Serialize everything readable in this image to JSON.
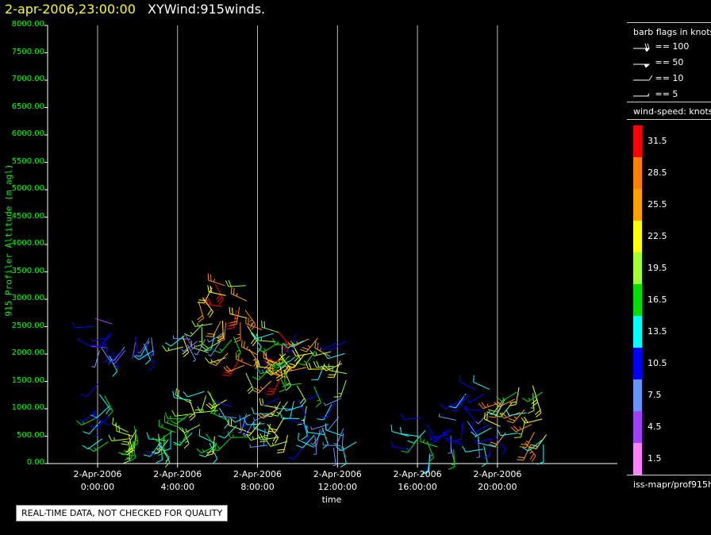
{
  "title": {
    "date": "2-apr-2006,23:00:00",
    "main": "XYWind:915winds."
  },
  "notice": "REAL-TIME DATA, NOT CHECKED FOR QUALITY",
  "legend": {
    "barb_title": "barb flags in knots",
    "barbs": [
      {
        "label": "== 100",
        "type": "flag100"
      },
      {
        "label": "== 50",
        "type": "flag50"
      },
      {
        "label": "== 10",
        "type": "full10"
      },
      {
        "label": "== 5",
        "type": "half5"
      }
    ],
    "colorbar_title": "wind-speed: knots",
    "colorbar": [
      {
        "label": "31.5",
        "color": "#ff0000"
      },
      {
        "label": "28.5",
        "color": "#ff8000"
      },
      {
        "label": "25.5",
        "color": "#ffa000"
      },
      {
        "label": "22.5",
        "color": "#ffff00"
      },
      {
        "label": "19.5",
        "color": "#a0ff30"
      },
      {
        "label": "16.5",
        "color": "#00e000"
      },
      {
        "label": "13.5",
        "color": "#00ffff"
      },
      {
        "label": "10.5",
        "color": "#0000ff"
      },
      {
        "label": "7.5",
        "color": "#6496ff"
      },
      {
        "label": "4.5",
        "color": "#a040ff"
      },
      {
        "label": "1.5",
        "color": "#ff80ff"
      }
    ],
    "source": "iss-mapr/prof915h"
  },
  "chart_data": {
    "type": "scatter",
    "subtype": "wind-barb time-height",
    "ylabel": "915 Profiler Altitude (m agl)",
    "xlabel": "time",
    "ylim": [
      0,
      8000
    ],
    "yticks": [
      "0.00",
      "500.00",
      "1000.00",
      "1500.00",
      "2000.00",
      "2500.00",
      "3000.00",
      "3500.00",
      "4000.00",
      "4500.00",
      "5000.00",
      "5500.00",
      "6000.00",
      "6500.00",
      "7000.00",
      "7500.00",
      "8000.00"
    ],
    "x_unit": "hours since 2-Apr-2006 00:00",
    "xlim": [
      -2.5,
      26
    ],
    "xticks": [
      {
        "hour": 0,
        "date": "2-Apr-2006",
        "time": "0:00:00"
      },
      {
        "hour": 4,
        "date": "2-Apr-2006",
        "time": "4:00:00"
      },
      {
        "hour": 8,
        "date": "2-Apr-2006",
        "time": "8:00:00"
      },
      {
        "hour": 12,
        "date": "2-Apr-2006",
        "time": "12:00:00"
      },
      {
        "hour": 16,
        "date": "2-Apr-2006",
        "time": "16:00:00"
      },
      {
        "hour": 20,
        "date": "2-Apr-2006",
        "time": "20:00:00"
      }
    ],
    "grid": "vertical lines at tick hours",
    "speed_colors": {
      "bins": [
        0,
        3,
        6,
        9,
        12,
        15,
        18,
        21,
        24,
        27,
        30
      ],
      "colors": [
        "#ff80ff",
        "#a040ff",
        "#6496ff",
        "#0000ff",
        "#00ffff",
        "#00e000",
        "#a0ff30",
        "#ffff00",
        "#ffa000",
        "#ff8000",
        "#ff0000"
      ]
    },
    "clusters": [
      {
        "x": [
          -0.6,
          1.0
        ],
        "y": [
          1950,
          2550
        ],
        "spd": [
          3,
          14
        ]
      },
      {
        "x": [
          -0.2,
          0.6
        ],
        "y": [
          100,
          1600
        ],
        "spd": [
          8,
          19
        ]
      },
      {
        "x": [
          1.0,
          3.0
        ],
        "y": [
          2050,
          2500
        ],
        "spd": [
          4,
          14
        ]
      },
      {
        "x": [
          1.5,
          2.0
        ],
        "y": [
          300,
          700
        ],
        "spd": [
          15,
          22
        ]
      },
      {
        "x": [
          3.0,
          4.0
        ],
        "y": [
          300,
          650
        ],
        "spd": [
          10,
          20
        ]
      },
      {
        "x": [
          3.8,
          6.5
        ],
        "y": [
          1900,
          2600
        ],
        "spd": [
          4,
          22
        ]
      },
      {
        "x": [
          4.0,
          6.5
        ],
        "y": [
          300,
          1400
        ],
        "spd": [
          12,
          24
        ]
      },
      {
        "x": [
          5.0,
          7.5
        ],
        "y": [
          2500,
          3300
        ],
        "spd": [
          20,
          32
        ]
      },
      {
        "x": [
          6.5,
          10.0
        ],
        "y": [
          1500,
          2500
        ],
        "spd": [
          10,
          32
        ]
      },
      {
        "x": [
          6.5,
          10.5
        ],
        "y": [
          300,
          1100
        ],
        "spd": [
          6,
          24
        ]
      },
      {
        "x": [
          9.0,
          12.5
        ],
        "y": [
          1000,
          2300
        ],
        "spd": [
          6,
          26
        ]
      },
      {
        "x": [
          10.0,
          13.0
        ],
        "y": [
          150,
          900
        ],
        "spd": [
          6,
          16
        ]
      },
      {
        "x": [
          15.5,
          18.5
        ],
        "y": [
          150,
          900
        ],
        "spd": [
          8,
          16
        ]
      },
      {
        "x": [
          18.0,
          20.0
        ],
        "y": [
          200,
          1400
        ],
        "spd": [
          8,
          14
        ]
      },
      {
        "x": [
          20.0,
          22.5
        ],
        "y": [
          300,
          1500
        ],
        "spd": [
          12,
          30
        ]
      }
    ]
  }
}
